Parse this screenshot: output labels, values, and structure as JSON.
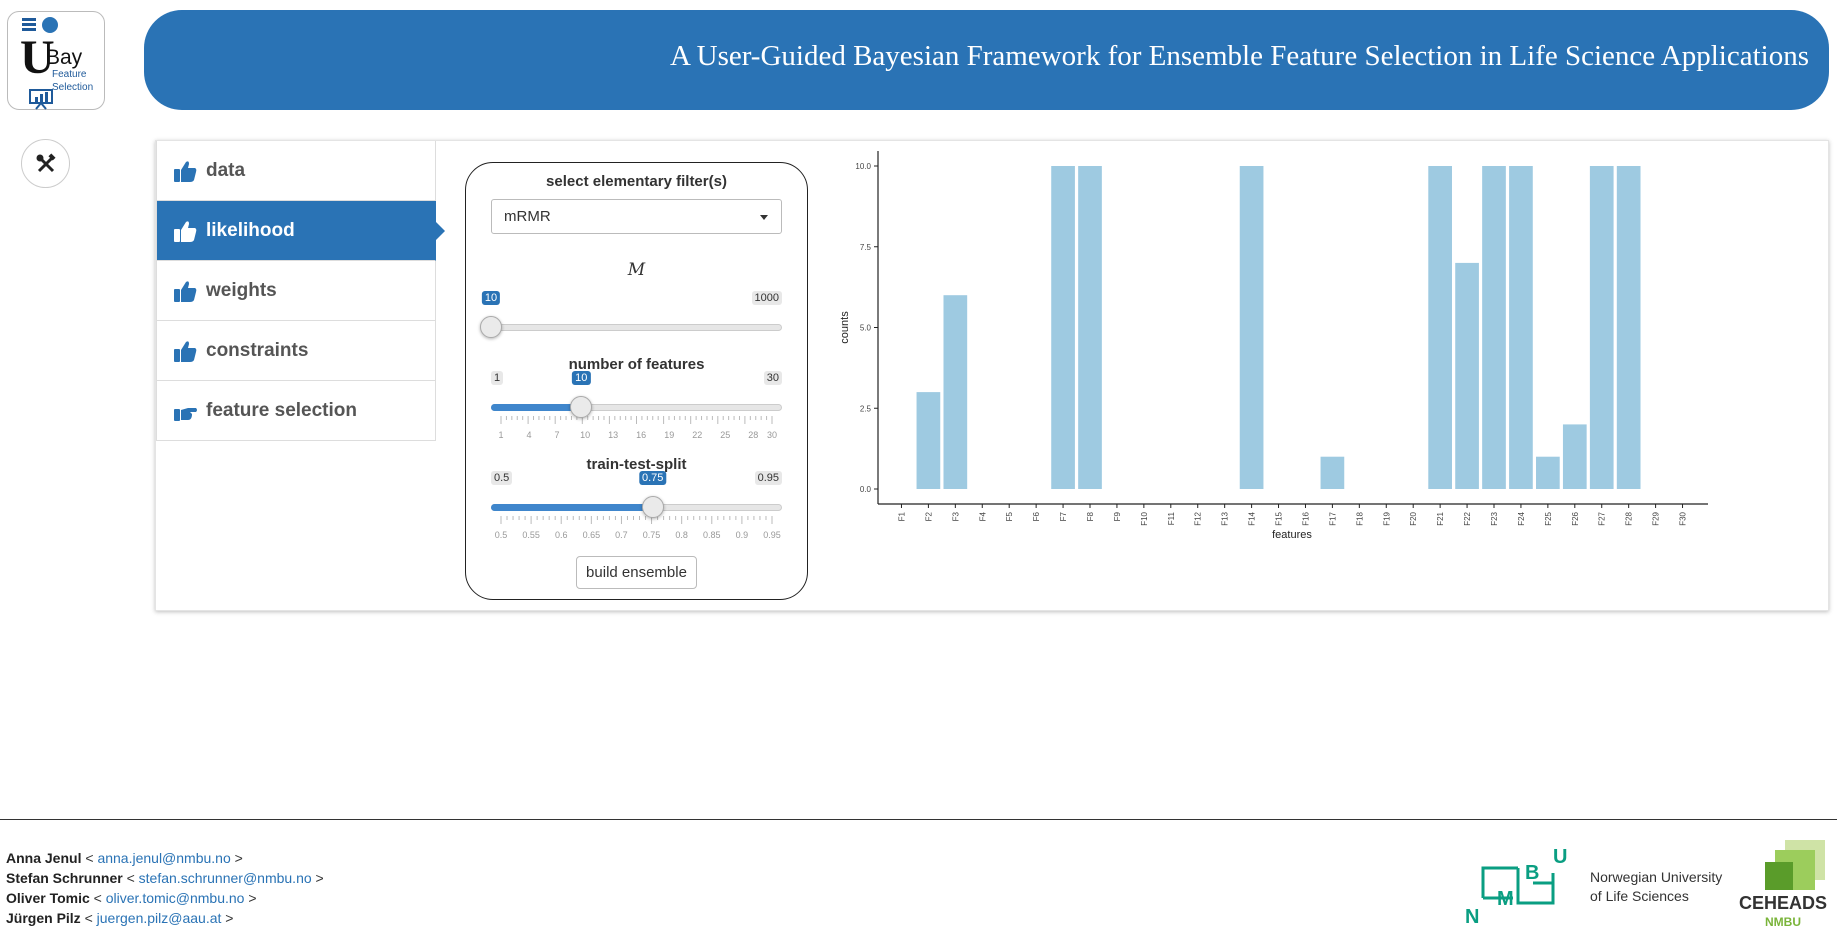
{
  "logo": {
    "letter": "U",
    "word": "Bay",
    "subtitle_line1": "Feature",
    "subtitle_line2": "Selection"
  },
  "header": {
    "title": "A User-Guided Bayesian Framework for Ensemble Feature Selection in Life Science Applications"
  },
  "tabs": [
    {
      "label": "data",
      "icon": "thumbs-up-icon"
    },
    {
      "label": "likelihood",
      "icon": "thumbs-up-icon",
      "active": true
    },
    {
      "label": "weights",
      "icon": "thumbs-up-icon"
    },
    {
      "label": "constraints",
      "icon": "thumbs-up-icon"
    },
    {
      "label": "feature selection",
      "icon": "hand-point-right-icon"
    }
  ],
  "controls": {
    "filter_label": "select elementary filter(s)",
    "filter_value": "mRMR",
    "m_label": "M",
    "m_slider": {
      "min": "10",
      "max": "1000",
      "value": "10",
      "fraction": 0.0
    },
    "nfeat_label": "number of features",
    "nfeat_slider": {
      "min": "1",
      "max": "30",
      "value": "10",
      "fraction": 0.3103,
      "ticks": [
        "1",
        "4",
        "7",
        "10",
        "13",
        "16",
        "19",
        "22",
        "25",
        "28",
        "30"
      ],
      "tick_values": [
        1,
        4,
        7,
        10,
        13,
        16,
        19,
        22,
        25,
        28,
        30
      ],
      "range": [
        1,
        30
      ]
    },
    "split_label": "train-test-split",
    "split_slider": {
      "min": "0.5",
      "max": "0.95",
      "value": "0.75",
      "fraction": 0.5556,
      "ticks": [
        "0.5",
        "0.55",
        "0.6",
        "0.65",
        "0.7",
        "0.75",
        "0.8",
        "0.85",
        "0.9",
        "0.95"
      ],
      "tick_values": [
        0.5,
        0.55,
        0.6,
        0.65,
        0.7,
        0.75,
        0.8,
        0.85,
        0.9,
        0.95
      ],
      "range": [
        0.5,
        0.95
      ]
    },
    "build_button": "build ensemble"
  },
  "chart_data": {
    "type": "bar",
    "categories": [
      "F1",
      "F2",
      "F3",
      "F4",
      "F5",
      "F6",
      "F7",
      "F8",
      "F9",
      "F10",
      "F11",
      "F12",
      "F13",
      "F14",
      "F15",
      "F16",
      "F17",
      "F18",
      "F19",
      "F20",
      "F21",
      "F22",
      "F23",
      "F24",
      "F25",
      "F26",
      "F27",
      "F28",
      "F29",
      "F30"
    ],
    "values": [
      0,
      3,
      6,
      0,
      0,
      0,
      10,
      10,
      0,
      0,
      0,
      0,
      0,
      10,
      0,
      0,
      1,
      0,
      0,
      0,
      10,
      7,
      10,
      10,
      1,
      2,
      10,
      10,
      0,
      0
    ],
    "yticks": [
      "0.0",
      "2.5",
      "5.0",
      "7.5",
      "10.0"
    ],
    "ytick_values": [
      0,
      2.5,
      5,
      7.5,
      10
    ],
    "xlabel": "features",
    "ylabel": "counts",
    "ylim": [
      0,
      10
    ],
    "bar_color": "#9ecae1",
    "grid": false
  },
  "footer": {
    "authors": [
      {
        "name": "Anna Jenul",
        "email": "anna.jenul@nmbu.no"
      },
      {
        "name": "Stefan Schrunner",
        "email": "stefan.schrunner@nmbu.no"
      },
      {
        "name": "Oliver Tomic",
        "email": "oliver.tomic@nmbu.no"
      },
      {
        "name": "Jürgen Pilz",
        "email": "juergen.pilz@aau.at"
      }
    ],
    "university_line1": "Norwegian University",
    "university_line2": "of Life Sciences",
    "ceheads_title": "CEHEADS",
    "ceheads_sub": "NMBU"
  },
  "colors": {
    "accent": "#2a73b5",
    "nmbu_green": "#0a9e82",
    "ceheads_green": "#7ab43a"
  }
}
